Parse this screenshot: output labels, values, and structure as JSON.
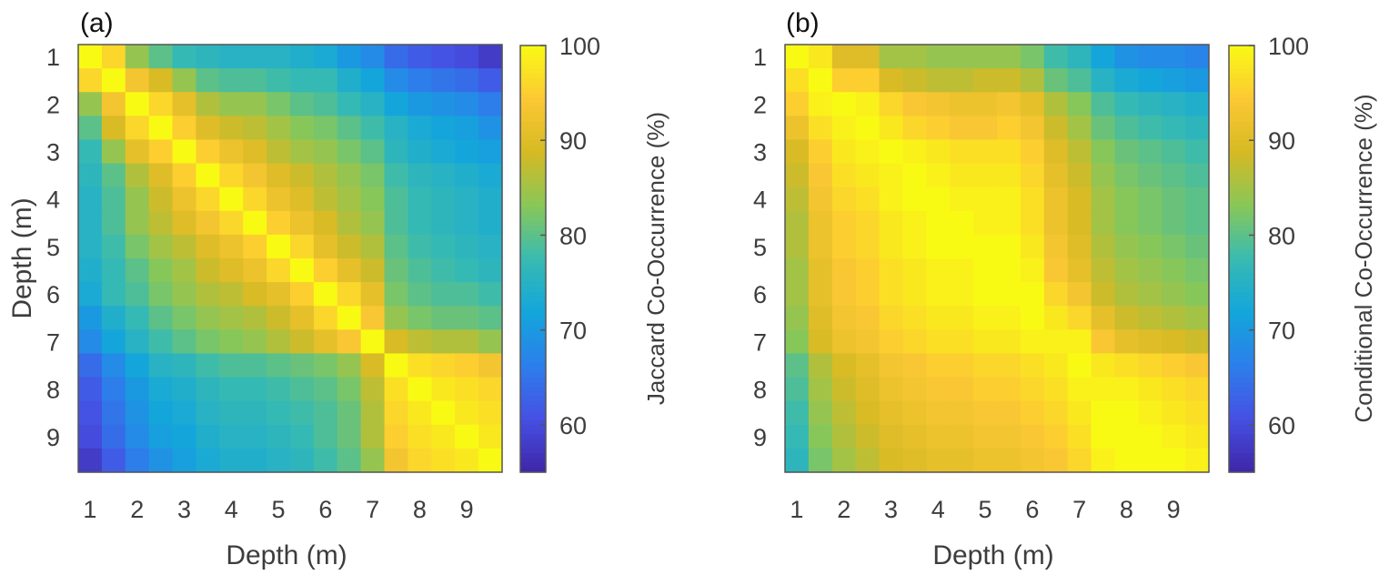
{
  "chart_data": [
    {
      "type": "heatmap",
      "panel_label": "(a)",
      "xlabel": "Depth (m)",
      "ylabel": "Depth (m)",
      "x_ticks": [
        "1",
        "2",
        "3",
        "4",
        "5",
        "6",
        "7",
        "8",
        "9"
      ],
      "y_ticks": [
        "1",
        "2",
        "3",
        "4",
        "5",
        "6",
        "7",
        "8",
        "9"
      ],
      "colorbar_label": "Jaccard Co-Occurrence (%)",
      "colorbar_ticks": [
        "60",
        "70",
        "80",
        "90",
        "100"
      ],
      "colorbar_range": [
        55,
        100
      ],
      "matrix": [
        [
          100,
          96,
          84,
          80,
          77,
          76,
          75,
          75,
          75,
          74,
          73,
          70,
          68,
          64,
          62,
          61,
          60,
          58
        ],
        [
          96,
          100,
          93,
          89,
          84,
          80,
          79,
          79,
          78,
          77,
          77,
          74,
          72,
          68,
          66,
          65,
          64,
          62
        ],
        [
          84,
          93,
          100,
          96,
          91,
          86,
          84,
          84,
          82,
          80,
          79,
          77,
          75,
          72,
          70,
          69,
          68,
          66
        ],
        [
          80,
          89,
          96,
          100,
          95,
          90,
          88,
          87,
          85,
          83,
          82,
          80,
          78,
          75,
          73,
          72,
          71,
          69
        ],
        [
          77,
          84,
          91,
          95,
          100,
          95,
          92,
          90,
          87,
          85,
          84,
          82,
          80,
          76,
          74,
          73,
          72,
          71
        ],
        [
          76,
          80,
          86,
          90,
          95,
          100,
          96,
          93,
          90,
          88,
          86,
          84,
          82,
          78,
          76,
          75,
          74,
          73
        ],
        [
          75,
          79,
          84,
          88,
          92,
          96,
          100,
          96,
          92,
          90,
          87,
          85,
          83,
          79,
          77,
          76,
          75,
          74
        ],
        [
          75,
          79,
          84,
          87,
          90,
          93,
          96,
          100,
          95,
          92,
          89,
          86,
          84,
          79,
          77,
          76,
          75,
          74
        ],
        [
          75,
          78,
          82,
          85,
          87,
          90,
          92,
          95,
          100,
          96,
          91,
          88,
          86,
          80,
          78,
          77,
          76,
          75
        ],
        [
          74,
          77,
          80,
          83,
          85,
          88,
          90,
          92,
          96,
          100,
          95,
          91,
          88,
          81,
          79,
          78,
          77,
          76
        ],
        [
          73,
          77,
          79,
          82,
          84,
          86,
          87,
          89,
          91,
          95,
          100,
          96,
          91,
          82,
          80,
          79,
          79,
          78
        ],
        [
          70,
          74,
          77,
          80,
          82,
          84,
          85,
          86,
          88,
          91,
          96,
          100,
          94,
          84,
          82,
          81,
          81,
          80
        ],
        [
          68,
          72,
          75,
          78,
          80,
          82,
          83,
          84,
          86,
          88,
          91,
          94,
          100,
          89,
          87,
          86,
          86,
          84
        ],
        [
          64,
          68,
          72,
          75,
          76,
          78,
          79,
          79,
          80,
          81,
          82,
          84,
          89,
          100,
          97,
          96,
          95,
          93
        ],
        [
          62,
          66,
          70,
          73,
          74,
          76,
          77,
          77,
          78,
          79,
          80,
          82,
          87,
          97,
          100,
          98,
          97,
          96
        ],
        [
          61,
          65,
          69,
          72,
          73,
          75,
          76,
          76,
          77,
          78,
          79,
          81,
          86,
          96,
          98,
          100,
          98,
          97
        ],
        [
          60,
          64,
          68,
          71,
          72,
          74,
          75,
          75,
          76,
          77,
          79,
          81,
          86,
          95,
          97,
          98,
          100,
          98
        ],
        [
          58,
          62,
          66,
          69,
          71,
          73,
          74,
          74,
          75,
          76,
          78,
          80,
          84,
          93,
          96,
          97,
          98,
          100
        ]
      ]
    },
    {
      "type": "heatmap",
      "panel_label": "(b)",
      "xlabel": "Depth (m)",
      "ylabel": "",
      "x_ticks": [
        "1",
        "2",
        "3",
        "4",
        "5",
        "6",
        "7",
        "8",
        "9"
      ],
      "y_ticks": [
        "1",
        "2",
        "3",
        "4",
        "5",
        "6",
        "7",
        "8",
        "9"
      ],
      "colorbar_label": "Conditional Co-Occurrence (%)",
      "colorbar_ticks": [
        "60",
        "70",
        "80",
        "90",
        "100"
      ],
      "colorbar_range": [
        55,
        100
      ],
      "matrix": [
        [
          100,
          98,
          90,
          90,
          85,
          85,
          84,
          84,
          84,
          84,
          82,
          78,
          76,
          72,
          69,
          68,
          68,
          67
        ],
        [
          97,
          100,
          95,
          95,
          89,
          88,
          87,
          87,
          88,
          88,
          86,
          81,
          79,
          75,
          73,
          72,
          71,
          70
        ],
        [
          95,
          99,
          100,
          99,
          96,
          94,
          93,
          92,
          92,
          93,
          91,
          86,
          83,
          79,
          77,
          76,
          75,
          74
        ],
        [
          92,
          97,
          99,
          100,
          98,
          96,
          95,
          94,
          94,
          95,
          93,
          88,
          85,
          81,
          79,
          78,
          77,
          76
        ],
        [
          89,
          95,
          98,
          99,
          100,
          99,
          98,
          97,
          97,
          97,
          95,
          90,
          87,
          83,
          81,
          80,
          79,
          78
        ],
        [
          88,
          94,
          97,
          98,
          99,
          100,
          99,
          98,
          98,
          98,
          96,
          91,
          88,
          84,
          82,
          81,
          80,
          79
        ],
        [
          87,
          93,
          96,
          97,
          99,
          100,
          100,
          99,
          99,
          99,
          97,
          92,
          89,
          85,
          83,
          82,
          81,
          80
        ],
        [
          86,
          92,
          95,
          96,
          98,
          99,
          100,
          100,
          99,
          99,
          97,
          92,
          89,
          85,
          83,
          82,
          81,
          80
        ],
        [
          86,
          92,
          95,
          96,
          98,
          99,
          100,
          100,
          100,
          100,
          98,
          93,
          90,
          86,
          84,
          83,
          82,
          81
        ],
        [
          85,
          91,
          94,
          95,
          97,
          98,
          99,
          99,
          100,
          100,
          99,
          94,
          91,
          87,
          85,
          84,
          83,
          82
        ],
        [
          85,
          91,
          94,
          95,
          97,
          98,
          99,
          99,
          100,
          100,
          100,
          96,
          93,
          88,
          86,
          85,
          84,
          83
        ],
        [
          84,
          90,
          93,
          94,
          96,
          97,
          98,
          98,
          99,
          99,
          100,
          98,
          96,
          91,
          88,
          87,
          86,
          85
        ],
        [
          83,
          89,
          92,
          93,
          95,
          96,
          97,
          97,
          98,
          98,
          99,
          99,
          99,
          94,
          91,
          90,
          89,
          88
        ],
        [
          80,
          86,
          89,
          91,
          93,
          94,
          95,
          95,
          96,
          96,
          97,
          98,
          100,
          98,
          97,
          96,
          95,
          94
        ],
        [
          79,
          85,
          88,
          90,
          92,
          93,
          94,
          94,
          95,
          95,
          96,
          97,
          99,
          99,
          99,
          98,
          97,
          96
        ],
        [
          78,
          84,
          87,
          89,
          91,
          92,
          93,
          93,
          94,
          94,
          95,
          96,
          98,
          100,
          100,
          99,
          98,
          97
        ],
        [
          77,
          83,
          86,
          88,
          90,
          91,
          92,
          92,
          93,
          93,
          94,
          95,
          97,
          100,
          100,
          100,
          99,
          98
        ],
        [
          76,
          82,
          85,
          87,
          89,
          90,
          91,
          91,
          92,
          92,
          93,
          94,
          96,
          99,
          100,
          100,
          100,
          99
        ]
      ]
    }
  ]
}
